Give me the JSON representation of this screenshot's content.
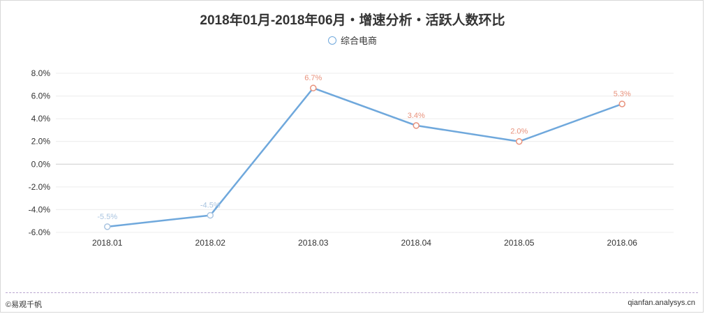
{
  "chart_data": {
    "type": "line",
    "title": "2018年01月-2018年06月・增速分析・活跃人数环比",
    "categories": [
      "2018.01",
      "2018.02",
      "2018.03",
      "2018.04",
      "2018.05",
      "2018.06"
    ],
    "series": [
      {
        "name": "综合电商",
        "values": [
          -5.5,
          -4.5,
          6.7,
          3.4,
          2.0,
          5.3
        ],
        "labels": [
          "-5.5%",
          "-4.5%",
          "6.7%",
          "3.4%",
          "2.0%",
          "5.3%"
        ]
      }
    ],
    "yticks": [
      "8.0%",
      "6.0%",
      "4.0%",
      "2.0%",
      "0.0%",
      "-2.0%",
      "-4.0%",
      "-6.0%"
    ],
    "ylim": [
      -6,
      8
    ],
    "grid": true,
    "legend": "top-center",
    "colors": {
      "line": "#6fa8dc",
      "positive_marker": "#e8927c",
      "negative_marker": "#a9c4e0"
    }
  },
  "footer": {
    "left": "©易观千帆",
    "right": "qianfan.analysys.cn"
  }
}
